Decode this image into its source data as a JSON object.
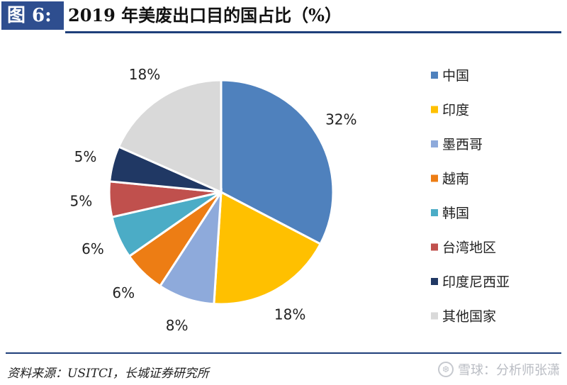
{
  "header": {
    "fig_label": "图 6:",
    "title": "2019 年美废出口目的国占比（%）"
  },
  "footer": {
    "source": "资料来源：USITCI，长城证券研究所",
    "watermark": "雪球：分析师张潇"
  },
  "colors": {
    "中国": "#4f81bd",
    "印度": "#ffc000",
    "墨西哥": "#8eaadb",
    "越南": "#ed7d14",
    "韩国": "#4bacc6",
    "台湾地区": "#c0504d",
    "印度尼西亚": "#203864",
    "其他国家": "#d9d9d9"
  },
  "chart_data": {
    "type": "pie",
    "title": "2019 年美废出口目的国占比（%）",
    "categories": [
      "中国",
      "印度",
      "墨西哥",
      "越南",
      "韩国",
      "台湾地区",
      "印度尼西亚",
      "其他国家"
    ],
    "values": [
      32,
      18,
      8,
      6,
      6,
      5,
      5,
      18
    ],
    "labels": [
      "32%",
      "18%",
      "8%",
      "6%",
      "6%",
      "5%",
      "5%",
      "18%"
    ],
    "legend_position": "right"
  }
}
